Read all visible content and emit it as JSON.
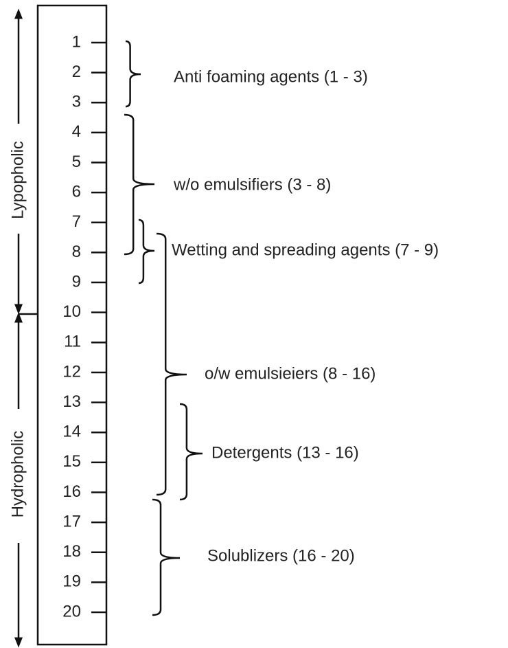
{
  "scale": {
    "ticks": [
      1,
      2,
      3,
      4,
      5,
      6,
      7,
      8,
      9,
      10,
      11,
      12,
      13,
      14,
      15,
      16,
      17,
      18,
      19,
      20
    ]
  },
  "side_labels": [
    "Lypopholic",
    "Hydropholic"
  ],
  "ranges": [
    {
      "label": "Anti foaming agents (1 - 3)"
    },
    {
      "label": "w/o emulsifiers (3 - 8)"
    },
    {
      "label": "Wetting and spreading agents (7 - 9)"
    },
    {
      "label": "o/w emulsieiers (8 - 16)"
    },
    {
      "label": "Detergents (13 - 16)"
    },
    {
      "label": "Solublizers (16 - 20)"
    }
  ]
}
